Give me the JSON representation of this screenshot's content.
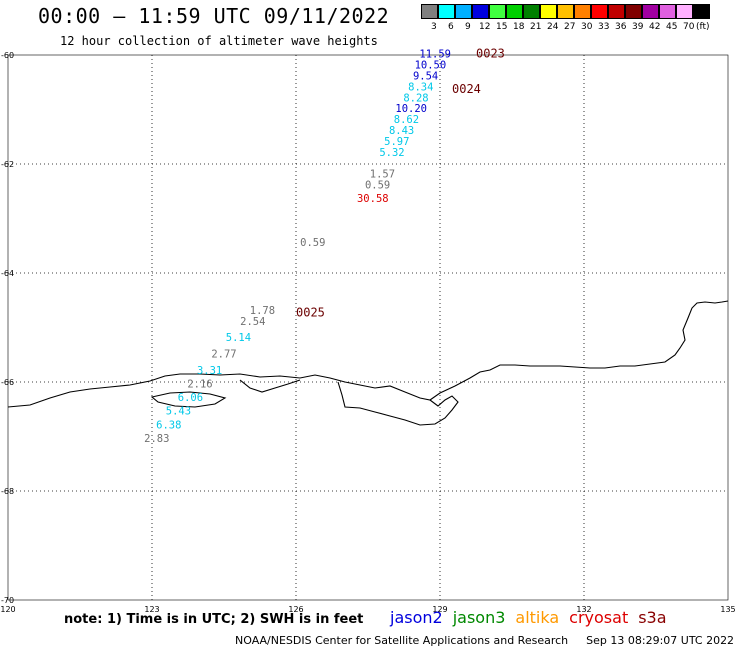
{
  "header": {
    "title": "00:00 – 11:59 UTC 09/11/2022",
    "subtitle": "12 hour collection of altimeter wave heights"
  },
  "legend": {
    "unit": "(ft)",
    "bins": [
      {
        "label": "3",
        "color": "#808080"
      },
      {
        "label": "6",
        "color": "#00ffff"
      },
      {
        "label": "9",
        "color": "#00b0ff"
      },
      {
        "label": "12",
        "color": "#0000e0"
      },
      {
        "label": "15",
        "color": "#40ff40"
      },
      {
        "label": "18",
        "color": "#00d000"
      },
      {
        "label": "21",
        "color": "#008000"
      },
      {
        "label": "24",
        "color": "#ffff00"
      },
      {
        "label": "27",
        "color": "#ffc000"
      },
      {
        "label": "30",
        "color": "#ff8000"
      },
      {
        "label": "33",
        "color": "#ff0000"
      },
      {
        "label": "36",
        "color": "#c00000"
      },
      {
        "label": "39",
        "color": "#800000"
      },
      {
        "label": "42",
        "color": "#a000a0"
      },
      {
        "label": "45",
        "color": "#e060e0"
      },
      {
        "label": "70",
        "color": "#ffb0ff"
      },
      {
        "label": "",
        "color": "#000000"
      }
    ]
  },
  "map": {
    "lon_range": [
      120,
      135
    ],
    "lat_range": [
      -60,
      -70
    ],
    "lon_ticks": [
      "120",
      "123",
      "126",
      "129",
      "132",
      "135"
    ],
    "lat_ticks": [
      "-60",
      "-62",
      "-64",
      "-66",
      "-68",
      "-70"
    ],
    "observations": [
      {
        "text": "11.59",
        "lon": 128.9,
        "lat": -60.05,
        "color": "#0000cc"
      },
      {
        "text": "10.50",
        "lon": 128.8,
        "lat": -60.25,
        "color": "#0000cc"
      },
      {
        "text": "9.54",
        "lon": 128.7,
        "lat": -60.45,
        "color": "#0000cc"
      },
      {
        "text": "8.34",
        "lon": 128.6,
        "lat": -60.65,
        "color": "#00c8e8"
      },
      {
        "text": "8.28",
        "lon": 128.5,
        "lat": -60.85,
        "color": "#00c8e8"
      },
      {
        "text": "10.20",
        "lon": 128.4,
        "lat": -61.05,
        "color": "#0000cc"
      },
      {
        "text": "8.62",
        "lon": 128.3,
        "lat": -61.25,
        "color": "#00c8e8"
      },
      {
        "text": "8.43",
        "lon": 128.2,
        "lat": -61.45,
        "color": "#00c8e8"
      },
      {
        "text": "5.97",
        "lon": 128.1,
        "lat": -61.65,
        "color": "#00c8e8"
      },
      {
        "text": "5.32",
        "lon": 128.0,
        "lat": -61.85,
        "color": "#00c8e8"
      },
      {
        "text": "1.57",
        "lon": 127.8,
        "lat": -62.25,
        "color": "#707070"
      },
      {
        "text": "0.59",
        "lon": 127.7,
        "lat": -62.45,
        "color": "#707070"
      },
      {
        "text": "30.58",
        "lon": 127.6,
        "lat": -62.7,
        "color": "#dd0000"
      },
      {
        "text": "0.59",
        "lon": 126.35,
        "lat": -63.5,
        "color": "#707070"
      },
      {
        "text": "1.78",
        "lon": 125.3,
        "lat": -64.75,
        "color": "#707070"
      },
      {
        "text": "2.54",
        "lon": 125.1,
        "lat": -64.95,
        "color": "#707070"
      },
      {
        "text": "5.14",
        "lon": 124.8,
        "lat": -65.25,
        "color": "#00c8e8"
      },
      {
        "text": "2.77",
        "lon": 124.5,
        "lat": -65.55,
        "color": "#707070"
      },
      {
        "text": "3.31",
        "lon": 124.2,
        "lat": -65.85,
        "color": "#00c8e8"
      },
      {
        "text": "2.16",
        "lon": 124.0,
        "lat": -66.1,
        "color": "#707070"
      },
      {
        "text": "6.06",
        "lon": 123.8,
        "lat": -66.35,
        "color": "#00c8e8"
      },
      {
        "text": "5.43",
        "lon": 123.55,
        "lat": -66.6,
        "color": "#00c8e8"
      },
      {
        "text": "6.38",
        "lon": 123.35,
        "lat": -66.85,
        "color": "#00c8e8"
      },
      {
        "text": "2.83",
        "lon": 123.1,
        "lat": -67.1,
        "color": "#707070"
      }
    ],
    "pass_labels": [
      {
        "text": "0023",
        "lon": 129.75,
        "lat": -60.05
      },
      {
        "text": "0024",
        "lon": 129.25,
        "lat": -60.7
      },
      {
        "text": "0025",
        "lon": 126.0,
        "lat": -64.8
      }
    ]
  },
  "footer": {
    "note": "note: 1) Time is in UTC; 2) SWH is in feet",
    "satellites": [
      {
        "name": "jason2",
        "color": "#0000dd"
      },
      {
        "name": "jason3",
        "color": "#008800"
      },
      {
        "name": "altika",
        "color": "#ff9900"
      },
      {
        "name": "cryosat",
        "color": "#dd0000"
      },
      {
        "name": "s3a",
        "color": "#880000"
      }
    ],
    "credit": "NOAA/NESDIS Center for Satellite Applications and Research",
    "timestamp": "Sep 13 08:29:07 UTC 2022"
  }
}
